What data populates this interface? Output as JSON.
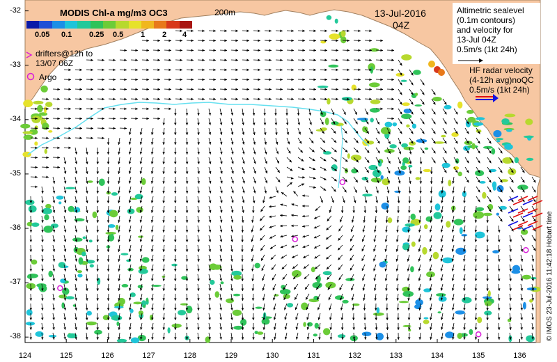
{
  "colorbar": {
    "title": "MODIS Chl-a mg/m3 OC3",
    "tick_labels": [
      "0.05",
      "0.1",
      "0.25",
      "0.5",
      "1",
      "2",
      "4"
    ],
    "colors": [
      "#0b1aa8",
      "#1e4fd6",
      "#1c8fe6",
      "#1fc4d9",
      "#23c99a",
      "#30c35a",
      "#6ccc38",
      "#b7d92e",
      "#e6e22b",
      "#f0b71f",
      "#e8791a",
      "#d8391b",
      "#a81613"
    ]
  },
  "labels": {
    "isobath": "200m",
    "date": "13-Jul-2016",
    "time": "04Z",
    "drifters": [
      "drifters@12h to",
      "13/07 06Z"
    ],
    "argo": "Argo",
    "altimetry": [
      "Altimetric sealevel",
      "(0.1m contours)",
      "and velocity for",
      "13-Jul 04Z",
      "0.5m/s (1kt 24h)"
    ],
    "hf_radar": [
      "HF radar velocity",
      "(4-12h avg)noQC",
      "0.5m/s (1kt 24h)"
    ],
    "credit": "© IMOS 23-Jul-2016 11:42:18 Hobart time"
  },
  "axes": {
    "x_ticks": [
      "124",
      "125",
      "126",
      "127",
      "128",
      "129",
      "130",
      "131",
      "132",
      "133",
      "134",
      "135",
      "136"
    ],
    "y_ticks": [
      "-32",
      "-33",
      "-34",
      "-35",
      "-36",
      "-37",
      "-38"
    ],
    "xlim": [
      124,
      136.5
    ],
    "ylim": [
      -38.1,
      -31.8
    ]
  },
  "argo_floats": [
    {
      "lon": 131.7,
      "lat": -35.15
    },
    {
      "lon": 130.55,
      "lat": -36.2
    },
    {
      "lon": 124.85,
      "lat": -37.1
    },
    {
      "lon": 136.15,
      "lat": -36.4
    },
    {
      "lon": 135.0,
      "lat": -37.95
    }
  ],
  "style": {
    "land": "#f7c7a2",
    "ocean": "#ffffff",
    "arrows": "#000000",
    "contour": "#66e0f0",
    "argo": "#d81ed8",
    "hf_radar_red": "#e01010",
    "hf_radar_blue": "#1010e0"
  }
}
